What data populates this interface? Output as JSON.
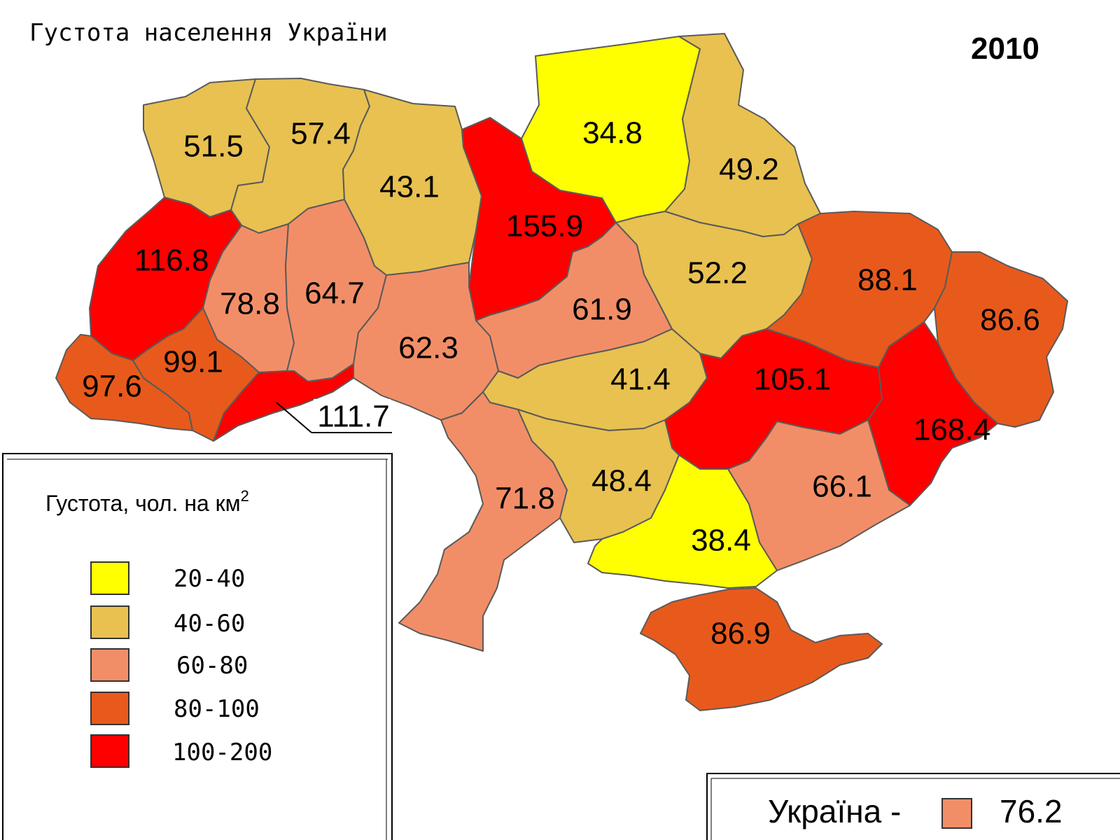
{
  "title": "Густота населення України",
  "year": "2010",
  "colors": {
    "c20_40": "#ffff00",
    "c40_60": "#e8c150",
    "c60_80": "#f28e67",
    "c80_100": "#e85a1c",
    "c100_200": "#ff0000",
    "border": "#5a5a5a"
  },
  "legend": {
    "title": "Густота, чол. на км",
    "title_sup": "2",
    "classes": [
      {
        "range": "20-40",
        "color": "#ffff00"
      },
      {
        "range": "40-60",
        "color": "#e8c150"
      },
      {
        "range": "60-80",
        "color": "#f28e67"
      },
      {
        "range": "80-100",
        "color": "#e85a1c"
      },
      {
        "range": "100-200",
        "color": "#ff0000"
      }
    ]
  },
  "regions": [
    {
      "value": "51.5",
      "class": 1
    },
    {
      "value": "57.4",
      "class": 1
    },
    {
      "value": "43.1",
      "class": 1
    },
    {
      "value": "155.9",
      "class": 4
    },
    {
      "value": "34.8",
      "class": 0
    },
    {
      "value": "49.2",
      "class": 1
    },
    {
      "value": "116.8",
      "class": 4
    },
    {
      "value": "78.8",
      "class": 2
    },
    {
      "value": "64.7",
      "class": 2
    },
    {
      "value": "62.3",
      "class": 2
    },
    {
      "value": "61.9",
      "class": 2
    },
    {
      "value": "52.2",
      "class": 1
    },
    {
      "value": "88.1",
      "class": 3
    },
    {
      "value": "86.6",
      "class": 3
    },
    {
      "value": "97.6",
      "class": 3
    },
    {
      "value": "99.1",
      "class": 3
    },
    {
      "value": "111.7",
      "class": 4
    },
    {
      "value": "41.4",
      "class": 1
    },
    {
      "value": "105.1",
      "class": 4
    },
    {
      "value": "168.4",
      "class": 4
    },
    {
      "value": "71.8",
      "class": 2
    },
    {
      "value": "48.4",
      "class": 1
    },
    {
      "value": "66.1",
      "class": 2
    },
    {
      "value": "38.4",
      "class": 0
    },
    {
      "value": "86.9",
      "class": 3
    }
  ],
  "summary": {
    "label": "Україна -",
    "value": "76.2",
    "color": "#f28e67"
  }
}
